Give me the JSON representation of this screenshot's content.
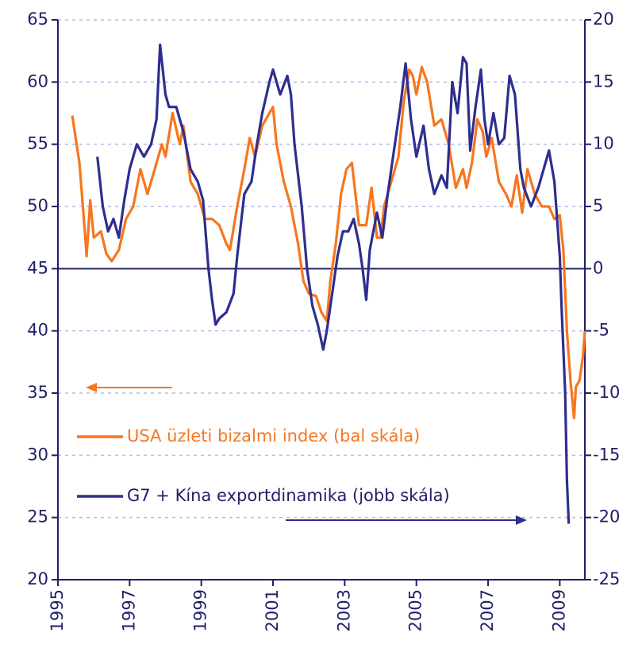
{
  "chart_data": {
    "type": "line",
    "xlim": [
      1995,
      2009.7
    ],
    "xticks": [
      1995,
      1997,
      1999,
      2001,
      2003,
      2005,
      2007,
      2009
    ],
    "ylim": [
      20,
      65
    ],
    "yticks": [
      20,
      25,
      30,
      35,
      40,
      45,
      50,
      55,
      60,
      65
    ],
    "y2lim": [
      -25,
      20
    ],
    "y2ticks": [
      -25,
      -20,
      -15,
      -10,
      -5,
      0,
      5,
      10,
      15,
      20
    ],
    "grid": true,
    "series": [
      {
        "name": "USA üzleti bizalmi index (bal skála)",
        "color": "#f7761e",
        "axis": "y",
        "x": [
          1995.4,
          1995.6,
          1995.75,
          1995.8,
          1995.9,
          1996.0,
          1996.2,
          1996.35,
          1996.5,
          1996.7,
          1996.9,
          1997.1,
          1997.3,
          1997.5,
          1997.7,
          1997.9,
          1998.0,
          1998.2,
          1998.4,
          1998.5,
          1998.7,
          1998.9,
          1999.1,
          1999.3,
          1999.5,
          1999.7,
          1999.8,
          2000.0,
          2000.2,
          2000.35,
          2000.5,
          2000.7,
          2000.9,
          2001.0,
          2001.1,
          2001.3,
          2001.5,
          2001.7,
          2001.85,
          2002.0,
          2002.2,
          2002.35,
          2002.5,
          2002.6,
          2002.75,
          2002.9,
          2003.05,
          2003.2,
          2003.3,
          2003.4,
          2003.6,
          2003.75,
          2003.9,
          2004.0,
          2004.1,
          2004.3,
          2004.5,
          2004.65,
          2004.8,
          2004.9,
          2005.0,
          2005.15,
          2005.3,
          2005.5,
          2005.7,
          2005.9,
          2006.1,
          2006.3,
          2006.4,
          2006.55,
          2006.7,
          2006.85,
          2006.95,
          2007.1,
          2007.3,
          2007.5,
          2007.65,
          2007.8,
          2007.95,
          2008.1,
          2008.3,
          2008.5,
          2008.7,
          2008.85,
          2009.0,
          2009.1,
          2009.2,
          2009.3,
          2009.4,
          2009.45,
          2009.55,
          2009.65,
          2009.7
        ],
        "values": [
          57.3,
          53.5,
          48,
          46,
          50.5,
          47.5,
          48,
          46.2,
          45.6,
          46.5,
          49,
          50,
          53,
          51,
          53,
          55,
          54,
          57.5,
          55,
          56.5,
          52,
          51,
          49,
          49,
          48.5,
          47,
          46.5,
          50,
          53,
          55.5,
          54,
          56.5,
          57.5,
          58,
          55,
          52,
          50,
          47,
          44,
          43,
          42.8,
          41.5,
          40.8,
          44,
          47,
          51,
          53,
          53.5,
          51,
          48.5,
          48.5,
          51.5,
          47.5,
          47.5,
          50,
          52,
          54,
          58.5,
          61,
          60.5,
          59,
          61.2,
          60,
          56.5,
          57,
          55,
          51.5,
          53,
          51.5,
          53.5,
          57,
          56,
          54,
          55.5,
          52,
          51,
          50,
          52.5,
          49.5,
          53,
          51,
          50,
          50,
          49,
          49.3,
          46.5,
          40,
          36,
          33,
          35.5,
          36,
          38,
          40
        ]
      },
      {
        "name": "G7 + Kína exportdinamika (jobb skála)",
        "color": "#2e2e8f",
        "axis": "y2",
        "x": [
          1996.1,
          1996.25,
          1996.4,
          1996.55,
          1996.7,
          1996.85,
          1997.0,
          1997.2,
          1997.4,
          1997.6,
          1997.75,
          1997.85,
          1998.0,
          1998.1,
          1998.3,
          1998.5,
          1998.7,
          1998.9,
          1999.05,
          1999.2,
          1999.3,
          1999.4,
          1999.5,
          1999.7,
          1999.9,
          2000.0,
          2000.2,
          2000.4,
          2000.55,
          2000.7,
          2000.9,
          2001.0,
          2001.2,
          2001.4,
          2001.5,
          2001.6,
          2001.8,
          2001.95,
          2002.1,
          2002.25,
          2002.4,
          2002.5,
          2002.65,
          2002.8,
          2002.95,
          2003.1,
          2003.25,
          2003.4,
          2003.5,
          2003.6,
          2003.7,
          2003.8,
          2003.9,
          2004.05,
          2004.2,
          2004.35,
          2004.55,
          2004.7,
          2004.85,
          2005.0,
          2005.2,
          2005.35,
          2005.5,
          2005.7,
          2005.85,
          2006.0,
          2006.15,
          2006.3,
          2006.4,
          2006.5,
          2006.65,
          2006.8,
          2006.9,
          2007.0,
          2007.15,
          2007.3,
          2007.45,
          2007.6,
          2007.75,
          2007.9,
          2008.0,
          2008.2,
          2008.4,
          2008.55,
          2008.7,
          2008.85,
          2009.0,
          2009.05,
          2009.15,
          2009.2,
          2009.25
        ],
        "values": [
          9,
          5,
          3,
          4,
          2.5,
          5.5,
          8,
          10,
          9,
          10,
          12,
          18,
          14,
          13,
          13,
          11,
          8,
          7,
          5.5,
          0,
          -2.5,
          -4.5,
          -4,
          -3.5,
          -2,
          1,
          6,
          7,
          10,
          12.5,
          15,
          16,
          14,
          15.5,
          14,
          10,
          5,
          0,
          -3,
          -4.5,
          -6.5,
          -5,
          -2,
          1,
          3,
          3,
          4,
          2,
          0,
          -2.5,
          1.5,
          3,
          4.5,
          2.5,
          6,
          9,
          13,
          16.5,
          12,
          9,
          11.5,
          8,
          6,
          7.5,
          6.5,
          15,
          12.5,
          17,
          16.5,
          9.5,
          13,
          16,
          12,
          10,
          12.5,
          10,
          10.5,
          15.5,
          14,
          8,
          6.5,
          5,
          6.5,
          8,
          9.5,
          7,
          1,
          -3,
          -10,
          -17,
          -20.5
        ]
      }
    ]
  }
}
